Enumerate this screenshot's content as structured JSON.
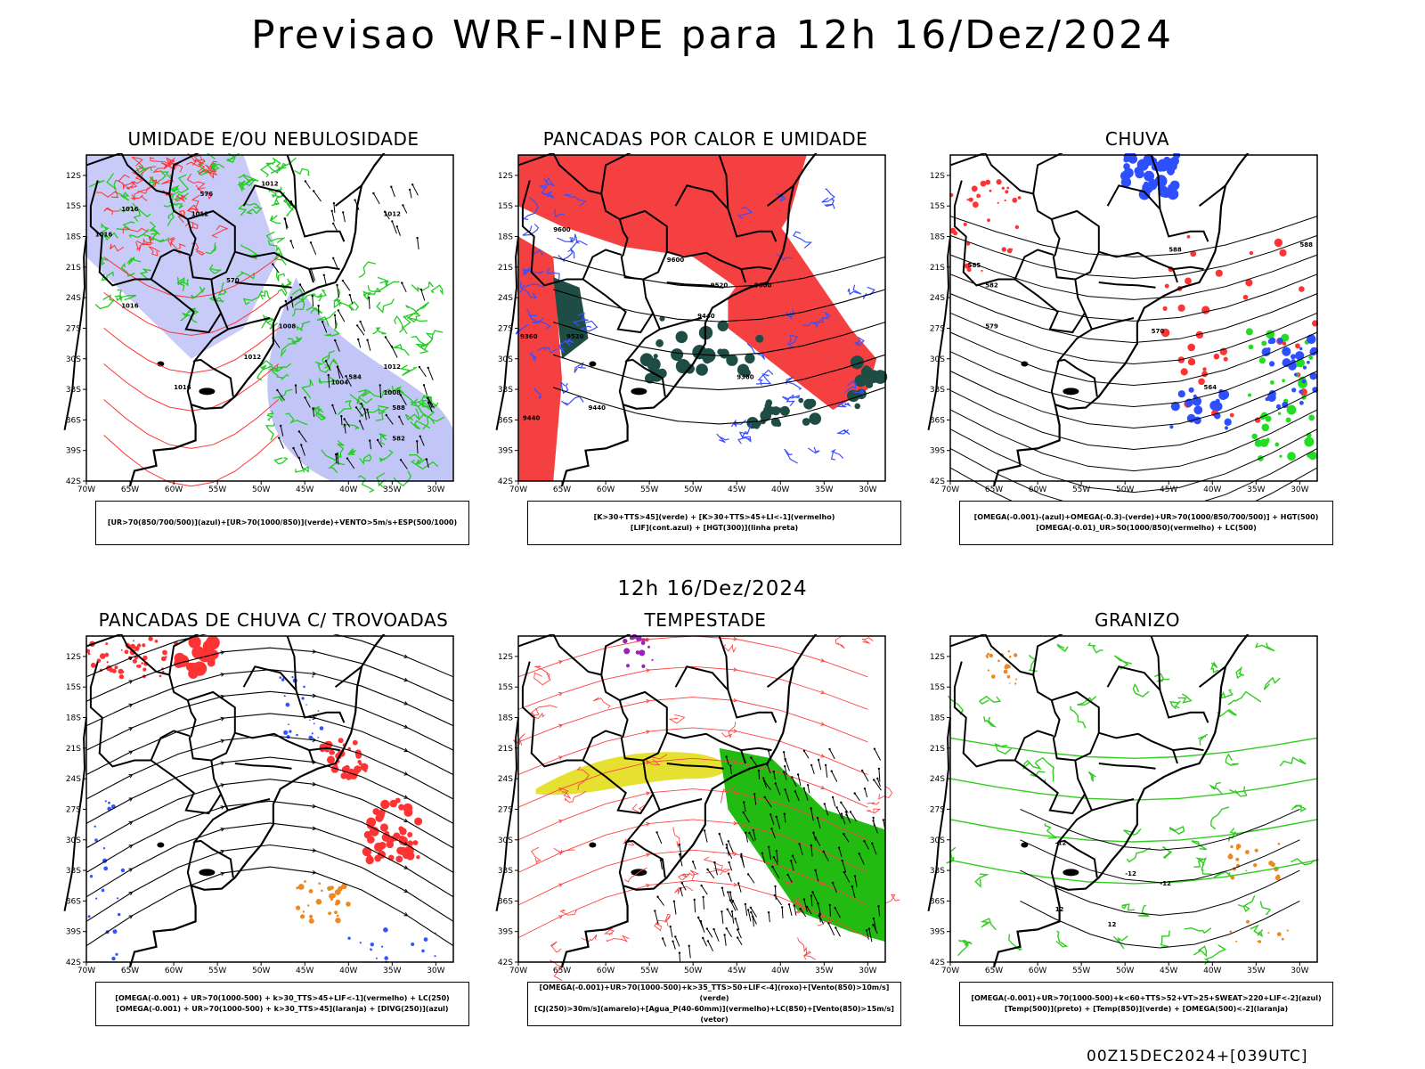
{
  "title": "Previsao WRF-INPE  para 12h 16/Dez/2024",
  "mid_title": "12h 16/Dez/2024",
  "footer": "00Z15DEC2024+[039UTC]",
  "lat_labels": [
    "12S",
    "15S",
    "18S",
    "21S",
    "24S",
    "27S",
    "30S",
    "33S",
    "36S",
    "39S",
    "42S"
  ],
  "lon_labels": [
    "70W",
    "65W",
    "60W",
    "55W",
    "50W",
    "45W",
    "40W",
    "35W",
    "30W"
  ],
  "panels": [
    {
      "title": "UMIDADE E/OU NEBULOSIDADE",
      "legend": [
        "[UR>70(850/700/500)](azul)+[UR>70(1000/850)](verde)+VENTO>5m/s+ESP(500/1000)"
      ],
      "labels": [
        "1012",
        "1012",
        "1016",
        "1016",
        "1012",
        "570",
        "576",
        "1016",
        "1008",
        "1012",
        "584",
        "1016",
        "1012",
        "1004",
        "1008",
        "588",
        "582"
      ],
      "colors": {
        "fill": "#9aa0f0",
        "green": "#22cc22",
        "red": "#ff3333"
      }
    },
    {
      "title": "PANCADAS POR CALOR E UMIDADE",
      "legend": [
        "[K>30+TTS>45](verde) + [K>30+TTS>45+LI<-1](vermelho)",
        "[LIF](cont.azul) + [HGT(300)](linha preta)"
      ],
      "labels": [
        "9600",
        "9600",
        "9520",
        "9600",
        "9440",
        "9520",
        "9440",
        "9360",
        "9440",
        "9360"
      ],
      "colors": {
        "red": "#f44040",
        "dark": "#1d4d44",
        "blue": "#3b4fff"
      }
    },
    {
      "title": "CHUVA",
      "legend": [
        "[OMEGA(-0.001)-(azul)+OMEGA(-0.3)-(verde)+UR>70(1000/850/700/500)] + HGT(500)",
        "[OMEGA(-0.01)_UR>50(1000/850)(vermelho) + LC(500)"
      ],
      "labels": [
        "588",
        "585",
        "582",
        "579",
        "570",
        "564",
        "588"
      ],
      "colors": {
        "blue": "#2d4fff",
        "green": "#22dd22",
        "red": "#ff3333"
      }
    },
    {
      "title": "PANCADAS DE CHUVA C/ TROVOADAS",
      "legend": [
        "[OMEGA(-0.001) + UR>70(1000-500) + k>30_TTS>45+LIF<-1](vermelho) + LC(250)",
        "[OMEGA(-0.001) + UR>70(1000-500) + k>30_TTS>45](laranja) + [DIVG(250)](azul)"
      ],
      "labels": [],
      "colors": {
        "red": "#ff3333",
        "orange": "#ee8822",
        "blue": "#3355ff"
      }
    },
    {
      "title": "TEMPESTADE",
      "legend": [
        "[OMEGA(-0.001)+UR>70(1000-500)+k>35_TTS>50+LIF<-4](roxo)+[Vento(850)>10m/s](verde)",
        "[CJ(250)>30m/s](amarelo)+[Agua_P(40-60mm)](vermelho)+LC(850)+[Vento(850)>15m/s](vetor)"
      ],
      "labels": [],
      "colors": {
        "yellow": "#e6e030",
        "green": "#22bb11",
        "red": "#ff4444",
        "purple": "#9922bb"
      }
    },
    {
      "title": "GRANIZO",
      "legend": [
        "[OMEGA(-0.001)+UR>70(1000-500)+k<60+TTS>52+VT>25+SWEAT>220+LIF<-2](azul)",
        "[Temp(500)](preto) + [Temp(850)](verde) + [OMEGA(500)<-2](laranja)"
      ],
      "labels": [
        "-12",
        "-12",
        "-12",
        "12",
        "12"
      ],
      "colors": {
        "green": "#33cc22",
        "orange": "#ee8822"
      }
    }
  ]
}
